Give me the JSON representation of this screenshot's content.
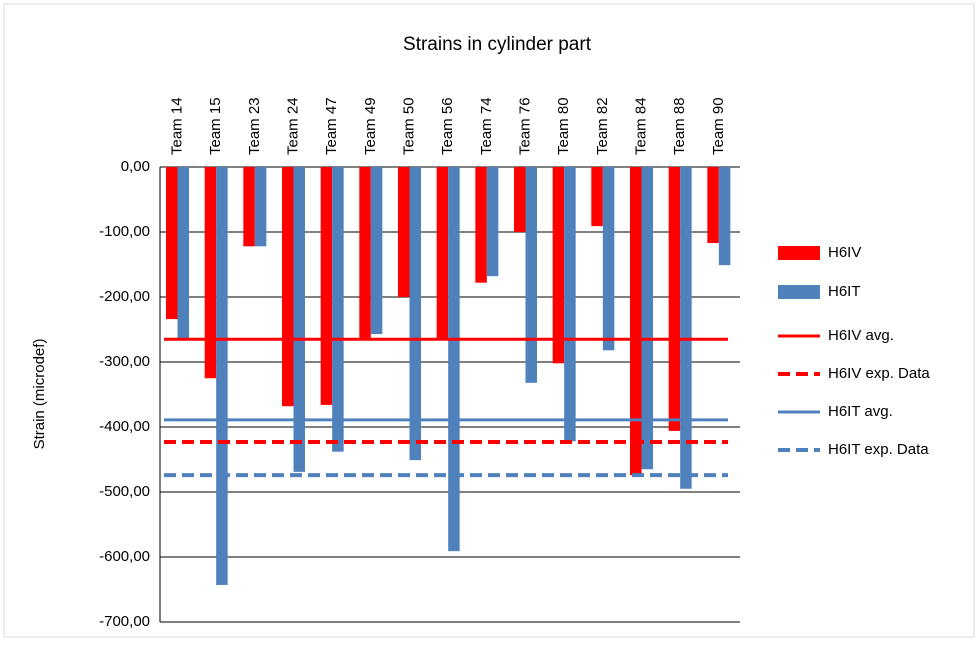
{
  "chart_data": {
    "type": "bar",
    "title": "Strains in cylinder part",
    "y_label": "Strain (microdef)",
    "categories": [
      "Team 14",
      "Team 15",
      "Team 23",
      "Team 24",
      "Team 47",
      "Team 49",
      "Team 50",
      "Team 56",
      "Team 74",
      "Team 76",
      "Team 80",
      "Team 82",
      "Team 84",
      "Team 88",
      "Team 90"
    ],
    "series": [
      {
        "name": "H6IV",
        "color": "#ff0000",
        "values": [
          -234,
          -325,
          -122,
          -368,
          -366,
          -263,
          -200,
          -266,
          -178,
          -100,
          -302,
          -91,
          -474,
          -406,
          -117
        ]
      },
      {
        "name": "H6IT",
        "color": "#4f81bd",
        "values": [
          -263,
          -643,
          -122,
          -469,
          -438,
          -257,
          -451,
          -591,
          -168,
          -332,
          -422,
          -282,
          -465,
          -495,
          -151
        ]
      }
    ],
    "reference_lines": [
      {
        "name": "H6IV avg.",
        "color": "#ff0000",
        "dashed": false,
        "value": -265
      },
      {
        "name": "H6IV exp. Data",
        "color": "#ff0000",
        "dashed": true,
        "value": -423
      },
      {
        "name": "H6IT avg.",
        "color": "#4f81bd",
        "dashed": false,
        "value": -389
      },
      {
        "name": "H6IT exp. Data",
        "color": "#4f81bd",
        "dashed": true,
        "value": -474
      }
    ],
    "ylim": [
      -700,
      0
    ],
    "yticks": [
      {
        "value": 0,
        "label": "0,00"
      },
      {
        "value": -100,
        "label": "-100,00"
      },
      {
        "value": -200,
        "label": "-200,00"
      },
      {
        "value": -300,
        "label": "-300,00"
      },
      {
        "value": -400,
        "label": "-400,00"
      },
      {
        "value": -500,
        "label": "-500,00"
      },
      {
        "value": -600,
        "label": "-600,00"
      },
      {
        "value": -700,
        "label": "-700,00"
      }
    ],
    "grid": true,
    "legend": "right"
  }
}
